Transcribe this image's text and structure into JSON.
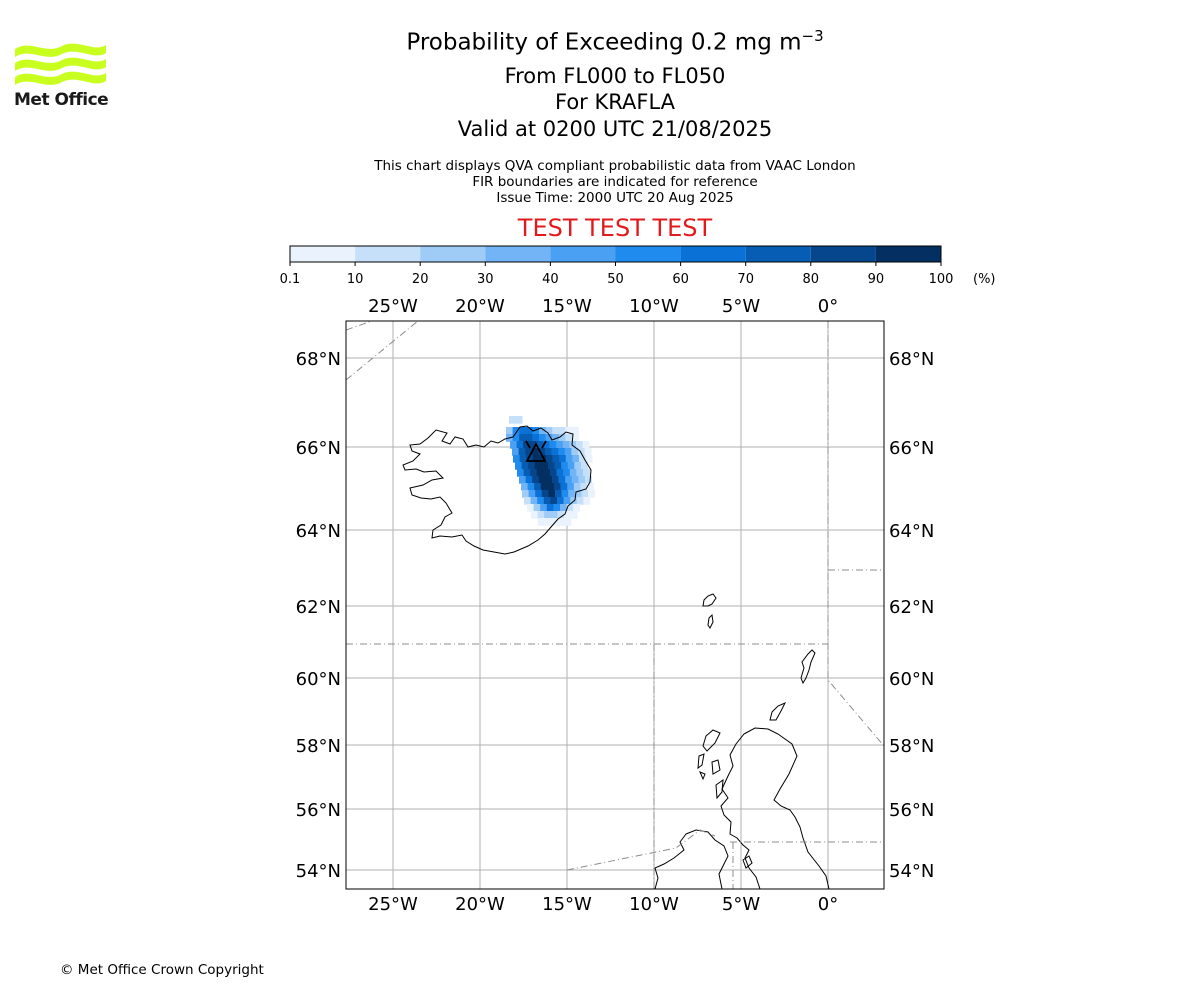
{
  "logo": {
    "text": "Met Office",
    "color": "#c8ff1e"
  },
  "title": {
    "main": "Probability of Exceeding 0.2 mg m",
    "main_exponent": "−3",
    "levels": "From FL000 to FL050",
    "volcano": "For KRAFLA",
    "valid": "Valid at 0200 UTC 21/08/2025"
  },
  "subtitle": {
    "line1": "This chart displays QVA compliant probabilistic data from VAAC London",
    "line2": "FIR boundaries are indicated for reference",
    "line3": "Issue Time: 2000 UTC 20 Aug 2025"
  },
  "test_banner": {
    "text": "TEST TEST TEST",
    "color": "#e31a1c"
  },
  "colorbar": {
    "ticks": [
      "0.1",
      "10",
      "20",
      "30",
      "40",
      "50",
      "60",
      "70",
      "80",
      "90",
      "100"
    ],
    "unit": "(%)",
    "colors": [
      "#eaf3fd",
      "#c6e0fa",
      "#9fcbf7",
      "#72b4f5",
      "#4aa0f3",
      "#1f8bef",
      "#0a72d7",
      "#075db4",
      "#05468c",
      "#032f62"
    ]
  },
  "map": {
    "lon_labels": [
      "25°W",
      "20°W",
      "15°W",
      "10°W",
      "5°W",
      "0°"
    ],
    "lat_labels": [
      "68°N",
      "66°N",
      "64°N",
      "62°N",
      "60°N",
      "58°N",
      "56°N",
      "54°N"
    ],
    "gridline_color": "#b0b0b0",
    "fir_color": "#8c8c8c"
  },
  "copyright": "© Met Office Crown Copyright"
}
